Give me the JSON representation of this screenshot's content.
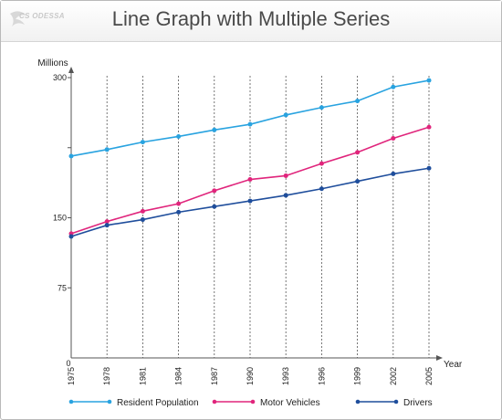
{
  "title": "Line Graph with Multiple Series",
  "logo": {
    "text": "CS ODESSA"
  },
  "chart_data": {
    "type": "line",
    "title": "Line Graph with Multiple Series",
    "xlabel": "Year",
    "ylabel": "Millions",
    "categories": [
      "1975",
      "1978",
      "1981",
      "1984",
      "1987",
      "1990",
      "1993",
      "1996",
      "1999",
      "2002",
      "2005"
    ],
    "x_origin_label": "0",
    "y_ticks": [
      "75",
      "150",
      "300"
    ],
    "ylim": [
      0,
      300
    ],
    "grid": "vertical dashed lines at each category",
    "legend_position": "bottom",
    "series": [
      {
        "name": "Resident Population",
        "color": "#29a3e0",
        "values": [
          216,
          223,
          231,
          237,
          244,
          250,
          260,
          268,
          275,
          290,
          297
        ]
      },
      {
        "name": "Motor Vehicles",
        "color": "#e0257c",
        "values": [
          133,
          146,
          157,
          165,
          179,
          191,
          195,
          208,
          220,
          235,
          247
        ]
      },
      {
        "name": "Drivers",
        "color": "#1f4e9c",
        "values": [
          130,
          142,
          148,
          156,
          162,
          168,
          174,
          181,
          189,
          197,
          203
        ]
      }
    ]
  }
}
